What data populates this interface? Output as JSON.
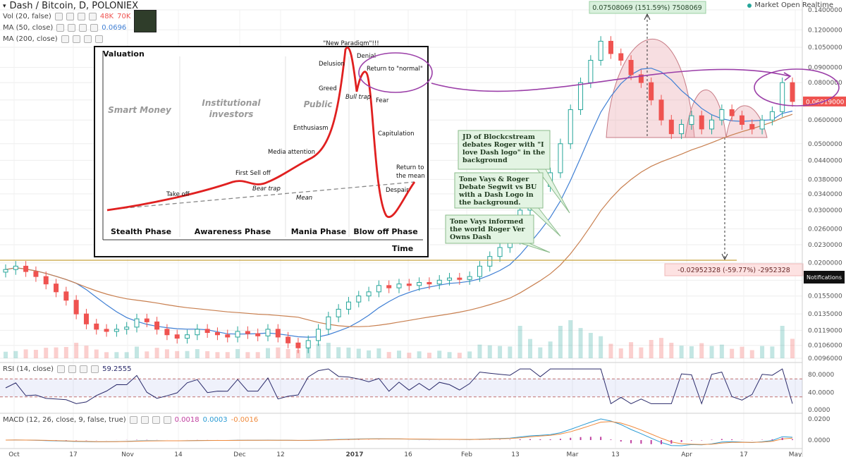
{
  "title": "Dash / Bitcoin, D, POLONIEX",
  "market_status": "Market Open Realtime",
  "notification_label": "Notifications",
  "indicators": {
    "vol": {
      "label": "Vol (20, false)",
      "v1": "48K",
      "v2": "70K"
    },
    "ma50": {
      "label": "MA (50, close)",
      "value": "0.0696"
    },
    "ma200": {
      "label": "MA (200, close)"
    },
    "rsi": {
      "label": "RSI (14, close)",
      "value": "59.2555"
    },
    "macd": {
      "label": "MACD (12, 26, close, 9, false, true)",
      "v1": "0.0018",
      "v2": "0.0003",
      "v3": "-0.0016"
    }
  },
  "colors": {
    "up": "#26a69a",
    "down": "#ef5350",
    "ma50": "#3f7fd4",
    "ma200": "#c87f4f",
    "support": "#c8a23c",
    "pattern": "#e8b4b8",
    "arrow": "#9b3fa8",
    "rsi": "#2a2a6a",
    "macd": "#2a9bd4",
    "signal": "#f08a3c",
    "hist": "#c040a0"
  },
  "chart_data": {
    "type": "candlestick",
    "symbol": "Dash / Bitcoin",
    "exchange": "POLONIEX",
    "interval": "D",
    "x_ticks": [
      "Oct",
      "17",
      "Nov",
      "14",
      "Dec",
      "12",
      "2017",
      "16",
      "Feb",
      "13",
      "Mar",
      "13",
      "Apr",
      "17",
      "May"
    ],
    "y_ticks": [
      "0.1400000",
      "0.1200000",
      "0.1050000",
      "0.0900000",
      "0.0800000",
      "0.0700000",
      "0.0600000",
      "0.0500000",
      "0.0440000",
      "0.0380000",
      "0.0340000",
      "0.0300000",
      "0.0260000",
      "0.0230000",
      "0.0200000",
      "0.0175000",
      "0.0155000",
      "0.0135000",
      "0.0119000",
      "0.0106000",
      "0.0096000"
    ],
    "y_scale": "log",
    "ylim": [
      0.0096,
      0.14
    ],
    "last_price": "0.06919000",
    "price_closes": [
      0.019,
      0.0195,
      0.0187,
      0.018,
      0.017,
      0.016,
      0.015,
      0.0135,
      0.0125,
      0.012,
      0.0118,
      0.012,
      0.0122,
      0.013,
      0.0127,
      0.012,
      0.0115,
      0.0112,
      0.0115,
      0.012,
      0.0117,
      0.0115,
      0.0113,
      0.0118,
      0.0116,
      0.0114,
      0.012,
      0.0113,
      0.0108,
      0.0104,
      0.011,
      0.012,
      0.0132,
      0.014,
      0.0148,
      0.0155,
      0.016,
      0.0168,
      0.0165,
      0.017,
      0.0168,
      0.0172,
      0.017,
      0.0175,
      0.0178,
      0.0176,
      0.018,
      0.0195,
      0.021,
      0.0225,
      0.024,
      0.03,
      0.034,
      0.036,
      0.04,
      0.05,
      0.065,
      0.08,
      0.095,
      0.11,
      0.1,
      0.095,
      0.085,
      0.08,
      0.07,
      0.06,
      0.054,
      0.058,
      0.062,
      0.056,
      0.06,
      0.065,
      0.062,
      0.058,
      0.056,
      0.06,
      0.064,
      0.08,
      0.0692
    ],
    "annotations": [
      {
        "text": "0.07508069 (151.59%) 7508069"
      },
      {
        "text": "-0.02952328 (-59.77%) -2952328"
      },
      {
        "text": "JD of Blockcstream debates Roger with \"I love Dash logo\" in the background"
      },
      {
        "text": "Tone Vays & Roger Debate Segwit vs BU with a Dash Logo in the background."
      },
      {
        "text": "Tone Vays informed the world Roger Ver Owns Dash"
      }
    ],
    "rsi": {
      "label": "RSI (14, close)",
      "last": 59.2555,
      "y_ticks": [
        "80.0000",
        "40.0000",
        "0.0000"
      ]
    },
    "macd": {
      "label": "MACD (12, 26, close, 9, false, true)",
      "values": [
        0.0018,
        0.0003,
        -0.0016
      ],
      "y_ticks": [
        "0.0200",
        "0.0000"
      ]
    }
  },
  "inset": {
    "y_label": "Valuation",
    "x_label": "Time",
    "phase_headers": [
      "Smart Money",
      "Institutional investors",
      "Public"
    ],
    "phases": [
      "Stealth Phase",
      "Awareness Phase",
      "Mania Phase",
      "Blow off Phase"
    ],
    "labels": {
      "new_paradigm": "\"New Paradigm\"!!!",
      "denial": "Denial",
      "delusion": "Delusion",
      "return_normal": "Return to \"normal\"",
      "greed": "Greed",
      "bull_trap": "Bull trap",
      "fear": "Fear",
      "enthusiasm": "Enthusiasm",
      "capitulation": "Capitulation",
      "media_attention": "Media attention",
      "first_sell_off": "First Sell off",
      "return_mean_1": "Return to",
      "return_mean_2": "the mean",
      "take_off": "Take off",
      "bear_trap": "Bear trap",
      "despair": "Despair",
      "mean": "Mean"
    }
  }
}
